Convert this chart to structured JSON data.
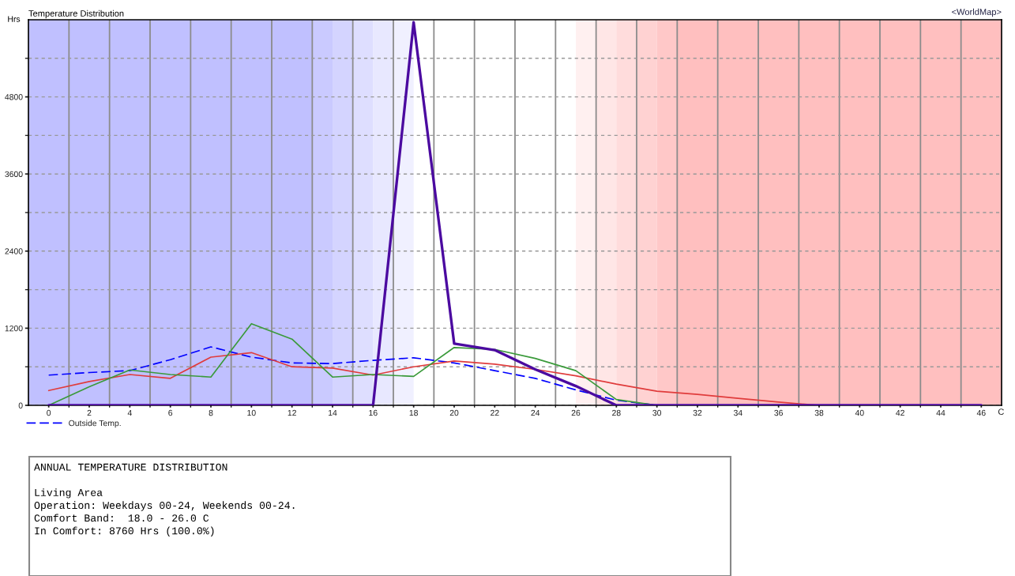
{
  "chart_data": {
    "type": "line",
    "title": "Temperature Distribution",
    "xlabel": "C",
    "ylabel": "Hrs",
    "annotations": [
      "<WorldMap>",
      "ANNUAL TEMPERATURE DISTRIBUTION",
      "Living Area",
      "Operation: Weekdays 00-24, Weekends 00-24.",
      "Comfort Band:  18.0 - 26.0 C",
      "In Comfort: 8760 Hrs (100.0%)"
    ],
    "series": [
      {
        "name": "Outside Temp.",
        "color": "#0000ff",
        "line_style": "dashed",
        "x": [
          0,
          2,
          4,
          6,
          8,
          10,
          12,
          14,
          16,
          18,
          20,
          22,
          24,
          26,
          28,
          30
        ],
        "values": [
          470,
          510,
          540,
          710,
          910,
          750,
          660,
          650,
          700,
          740,
          660,
          540,
          420,
          240,
          80,
          0
        ]
      },
      {
        "color": "#e03c3c",
        "x": [
          0,
          2,
          4,
          6,
          8,
          10,
          12,
          14,
          16,
          18,
          20,
          22,
          24,
          26,
          28,
          30,
          32,
          34,
          36,
          38
        ],
        "values": [
          230,
          370,
          480,
          420,
          750,
          820,
          600,
          580,
          470,
          600,
          690,
          640,
          560,
          460,
          330,
          220,
          170,
          110,
          50,
          0
        ]
      },
      {
        "color": "#3a9a3a",
        "x": [
          0,
          2,
          4,
          6,
          8,
          10,
          12,
          14,
          16,
          18,
          20,
          22,
          24,
          26,
          28,
          30
        ],
        "values": [
          0,
          290,
          550,
          480,
          440,
          1270,
          1030,
          440,
          480,
          450,
          900,
          870,
          730,
          540,
          90,
          0
        ]
      },
      {
        "color": "#4b0aa0",
        "x": [
          0,
          2,
          4,
          6,
          8,
          10,
          12,
          14,
          16,
          18,
          20,
          22,
          24,
          26,
          28,
          30,
          32,
          34,
          36,
          38,
          40,
          42,
          44,
          46
        ],
        "values": [
          0,
          0,
          0,
          0,
          0,
          0,
          0,
          0,
          0,
          5960,
          960,
          860,
          560,
          300,
          0,
          0,
          0,
          0,
          0,
          0,
          0,
          0,
          0,
          0
        ]
      }
    ],
    "xlim": [
      -1,
      47
    ],
    "ylim": [
      0,
      6000
    ],
    "xticks": [
      0,
      {
        "value": 1,
        "label": null
      },
      2,
      {
        "value": 3,
        "label": null
      },
      4,
      {
        "value": 5,
        "label": null
      },
      6,
      {
        "value": 7,
        "label": null
      },
      8,
      {
        "value": 9,
        "label": null
      },
      10,
      {
        "value": 11,
        "label": null
      },
      12,
      {
        "value": 13,
        "label": null
      },
      14,
      {
        "value": 15,
        "label": null
      },
      16,
      {
        "value": 17,
        "label": null
      },
      18,
      {
        "value": 19,
        "label": null
      },
      20,
      {
        "value": 21,
        "label": null
      },
      22,
      {
        "value": 23,
        "label": null
      },
      24,
      {
        "value": 25,
        "label": null
      },
      26,
      {
        "value": 27,
        "label": null
      },
      28,
      {
        "value": 29,
        "label": null
      },
      30,
      {
        "value": 31,
        "label": null
      },
      32,
      {
        "value": 33,
        "label": null
      },
      34,
      {
        "value": 35,
        "label": null
      },
      36,
      {
        "value": 37,
        "label": null
      },
      38,
      {
        "value": 39,
        "label": null
      },
      40,
      {
        "value": 41,
        "label": null
      },
      42,
      {
        "value": 43,
        "label": null
      },
      44,
      {
        "value": 45,
        "label": null
      },
      46
    ],
    "yticks": [
      0,
      {
        "value": 600,
        "label": null
      },
      1200,
      {
        "value": 1800,
        "label": null
      },
      2400,
      {
        "value": 3000,
        "label": null
      },
      3600,
      {
        "value": 4200,
        "label": null
      },
      4800,
      {
        "value": 5400,
        "label": null
      }
    ],
    "bands": [
      {
        "axis": "x",
        "from": -1,
        "to": 13,
        "color": "#c0c0ff"
      },
      {
        "axis": "x",
        "from": 13,
        "to": 14,
        "color": "#cacaff"
      },
      {
        "axis": "x",
        "from": 14,
        "to": 15,
        "color": "#d4d4ff"
      },
      {
        "axis": "x",
        "from": 15,
        "to": 16,
        "color": "#dedeff"
      },
      {
        "axis": "x",
        "from": 16,
        "to": 17,
        "color": "#e8e8ff"
      },
      {
        "axis": "x",
        "from": 17,
        "to": 18,
        "color": "#f0f0ff"
      },
      {
        "axis": "x",
        "from": 26,
        "to": 27,
        "color": "#fff0f0"
      },
      {
        "axis": "x",
        "from": 27,
        "to": 28,
        "color": "#ffe6e6"
      },
      {
        "axis": "x",
        "from": 28,
        "to": 29,
        "color": "#ffdcdc"
      },
      {
        "axis": "x",
        "from": 29,
        "to": 30,
        "color": "#ffd2d2"
      },
      {
        "axis": "x",
        "from": 30,
        "to": 31,
        "color": "#ffc8c8"
      },
      {
        "axis": "x",
        "from": 31,
        "to": 47,
        "color": "#ffbfbf"
      }
    ],
    "grid": true,
    "legend": "bottom left"
  }
}
